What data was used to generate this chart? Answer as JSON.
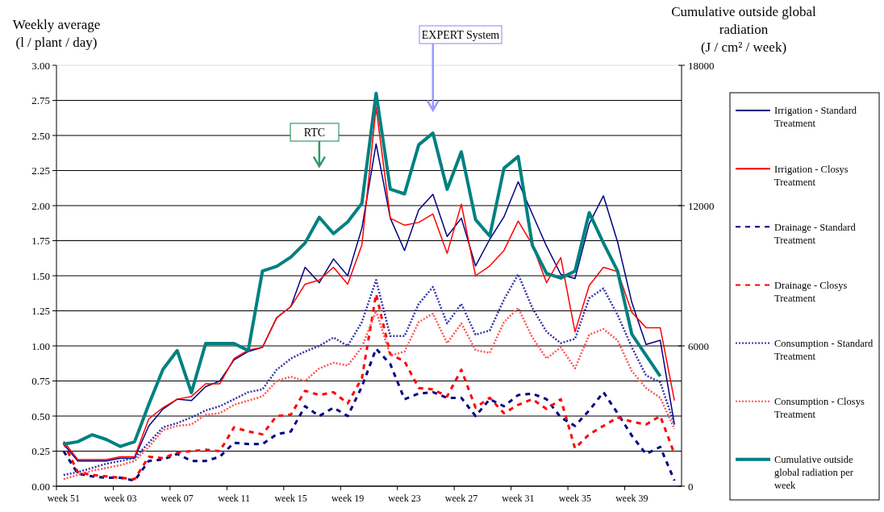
{
  "chart_data": {
    "type": "line",
    "ylabel": "Weekly average\n(l / plant / day)",
    "y2label": "Cumulative outside global\nradiation\n(J / cm² / week)",
    "categories": [
      "week 51",
      null,
      null,
      null,
      "week 03",
      null,
      null,
      null,
      "week 07",
      null,
      null,
      null,
      "week 11",
      null,
      null,
      null,
      "week 15",
      null,
      null,
      null,
      "week 19",
      null,
      null,
      null,
      "week 23",
      null,
      null,
      null,
      "week 27",
      null,
      null,
      null,
      "week 31",
      null,
      null,
      null,
      "week 35",
      null,
      null,
      null,
      "week 39",
      null,
      null,
      null
    ],
    "ylim": [
      0,
      3
    ],
    "yticks": [
      {
        "value": 0,
        "label": "0.00"
      },
      {
        "value": 0.25,
        "label": "0.25"
      },
      {
        "value": 0.5,
        "label": "0.50"
      },
      {
        "value": 0.75,
        "label": "0.75"
      },
      {
        "value": 1,
        "label": "1.00"
      },
      {
        "value": 1.25,
        "label": "1.25"
      },
      {
        "value": 1.5,
        "label": "1.50"
      },
      {
        "value": 1.75,
        "label": "1.75"
      },
      {
        "value": 2,
        "label": "2.00"
      },
      {
        "value": 2.25,
        "label": "2.25"
      },
      {
        "value": 2.5,
        "label": "2.50"
      },
      {
        "value": 2.75,
        "label": "2.75"
      },
      {
        "value": 3,
        "label": "3.00"
      }
    ],
    "y2lim": [
      0,
      18000
    ],
    "y2ticks": [
      0,
      6000,
      12000,
      18000
    ],
    "grid": "y",
    "legend": "right",
    "annotations": [
      "RTC",
      "EXPERT System"
    ],
    "series": [
      {
        "name": "Irrigation -  Standard Treatment",
        "color": "#000080",
        "line_style": "solid",
        "values": [
          0.3,
          0.18,
          0.18,
          0.18,
          0.2,
          0.2,
          0.43,
          0.55,
          0.62,
          0.61,
          0.71,
          0.75,
          0.9,
          0.96,
          0.99,
          1.2,
          1.28,
          1.56,
          1.45,
          1.62,
          1.5,
          1.84,
          2.44,
          1.91,
          1.68,
          1.97,
          2.08,
          1.78,
          1.91,
          1.57,
          1.76,
          1.92,
          2.17,
          1.94,
          1.71,
          1.51,
          1.48,
          1.87,
          2.07,
          1.74,
          1.31,
          1.01,
          1.04,
          0.44
        ]
      },
      {
        "name": "Irrigation -  Closys Treatment",
        "color": "#ff0000",
        "line_style": "solid",
        "values": [
          0.32,
          0.19,
          0.19,
          0.19,
          0.21,
          0.21,
          0.48,
          0.56,
          0.62,
          0.64,
          0.73,
          0.73,
          0.91,
          0.97,
          0.99,
          1.2,
          1.28,
          1.44,
          1.47,
          1.56,
          1.44,
          1.72,
          2.7,
          1.91,
          1.86,
          1.88,
          1.94,
          1.66,
          2.01,
          1.5,
          1.57,
          1.68,
          1.89,
          1.72,
          1.45,
          1.63,
          1.1,
          1.43,
          1.56,
          1.53,
          1.24,
          1.13,
          1.13,
          0.61
        ]
      },
      {
        "name": "Drainage -  Standard Treatment",
        "color": "#000080",
        "line_style": "dashed",
        "values": [
          0.25,
          0.09,
          0.07,
          0.06,
          0.06,
          0.04,
          0.18,
          0.19,
          0.23,
          0.18,
          0.18,
          0.21,
          0.31,
          0.3,
          0.3,
          0.37,
          0.39,
          0.57,
          0.5,
          0.56,
          0.5,
          0.71,
          0.98,
          0.87,
          0.62,
          0.66,
          0.67,
          0.63,
          0.63,
          0.5,
          0.62,
          0.57,
          0.65,
          0.66,
          0.62,
          0.49,
          0.43,
          0.54,
          0.67,
          0.52,
          0.36,
          0.23,
          0.28,
          0.04
        ]
      },
      {
        "name": "Drainage -  Closys Treatment",
        "color": "#ff0000",
        "line_style": "dashed",
        "values": [
          0.31,
          0.1,
          0.08,
          0.07,
          0.06,
          0.05,
          0.21,
          0.2,
          0.24,
          0.25,
          0.26,
          0.25,
          0.42,
          0.39,
          0.37,
          0.5,
          0.51,
          0.68,
          0.65,
          0.67,
          0.59,
          0.77,
          1.37,
          0.94,
          0.89,
          0.7,
          0.69,
          0.64,
          0.83,
          0.56,
          0.63,
          0.52,
          0.58,
          0.62,
          0.55,
          0.62,
          0.27,
          0.37,
          0.43,
          0.49,
          0.46,
          0.44,
          0.5,
          0.23
        ]
      },
      {
        "name": "Consumption - Standard Treatment",
        "color": "#3333aa",
        "line_style": "dotted",
        "values": [
          0.08,
          0.1,
          0.13,
          0.16,
          0.18,
          0.2,
          0.31,
          0.42,
          0.45,
          0.49,
          0.54,
          0.57,
          0.62,
          0.67,
          0.69,
          0.83,
          0.91,
          0.96,
          1.0,
          1.06,
          1.0,
          1.17,
          1.47,
          1.07,
          1.07,
          1.3,
          1.42,
          1.16,
          1.3,
          1.08,
          1.11,
          1.33,
          1.51,
          1.27,
          1.1,
          1.02,
          1.05,
          1.34,
          1.41,
          1.22,
          0.99,
          0.79,
          0.74,
          0.44
        ]
      },
      {
        "name": "Consumption - Closys Treatment",
        "color": "#ff5555",
        "line_style": "dotted",
        "values": [
          0.05,
          0.08,
          0.11,
          0.13,
          0.15,
          0.18,
          0.28,
          0.4,
          0.43,
          0.44,
          0.51,
          0.52,
          0.58,
          0.61,
          0.64,
          0.75,
          0.78,
          0.75,
          0.84,
          0.88,
          0.86,
          0.99,
          1.25,
          0.93,
          0.96,
          1.17,
          1.23,
          1.02,
          1.16,
          0.97,
          0.95,
          1.17,
          1.27,
          1.06,
          0.91,
          0.99,
          0.84,
          1.08,
          1.12,
          1.04,
          0.82,
          0.7,
          0.63,
          0.41
        ]
      },
      {
        "name": "Cumulative outside global radiation per week",
        "color": "#008080",
        "line_style": "solid",
        "axis": "y2",
        "values": [
          1800,
          1900,
          2200,
          2000,
          1700,
          1900,
          3500,
          5000,
          5800,
          4000,
          6100,
          6100,
          6100,
          5800,
          9200,
          9400,
          9800,
          10400,
          11500,
          10800,
          11300,
          12100,
          16800,
          12700,
          12500,
          14600,
          15100,
          12700,
          14300,
          11400,
          10700,
          13600,
          14100,
          10300,
          9100,
          8900,
          9200,
          11700,
          10400,
          9200,
          6500,
          5600,
          4700,
          null
        ]
      }
    ]
  }
}
